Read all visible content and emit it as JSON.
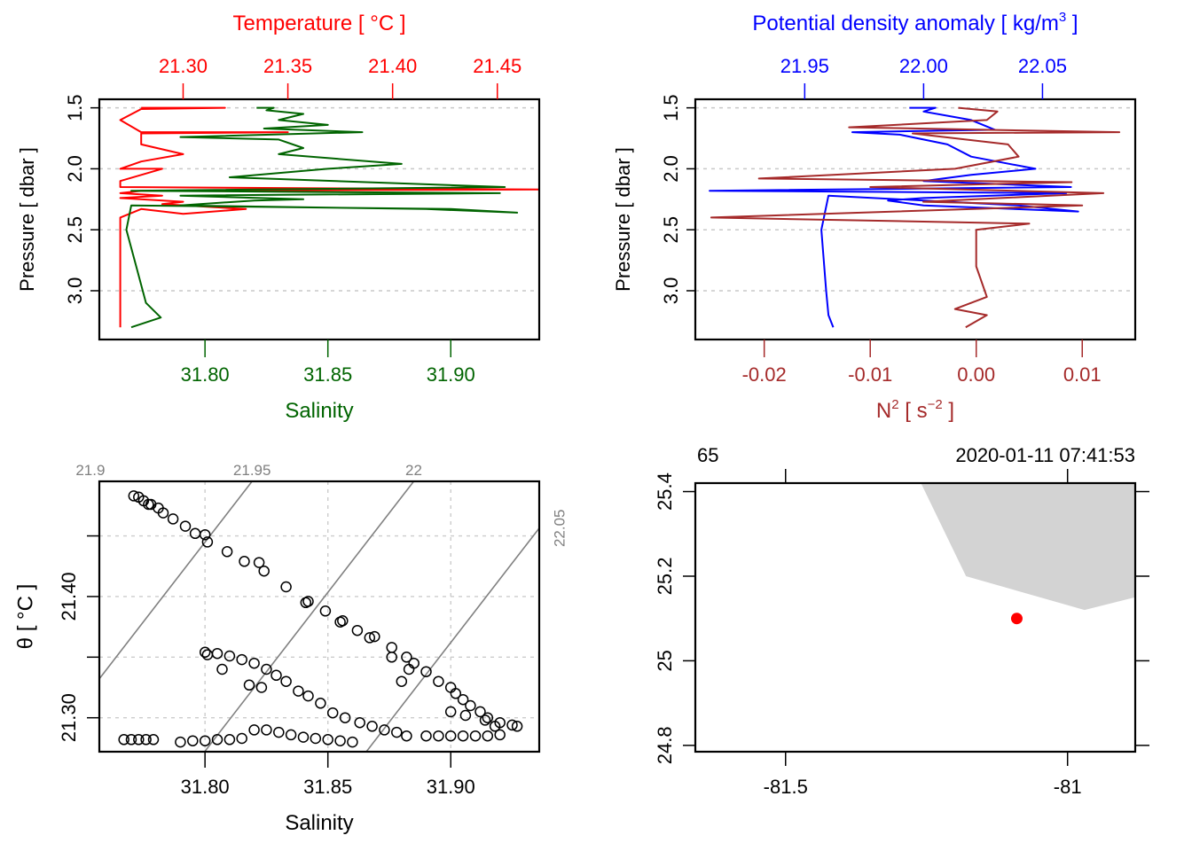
{
  "chart_data": [
    {
      "id": "profile-ts",
      "type": "line",
      "title": "",
      "ylabel": "Pressure [ dbar ]",
      "ylim": [
        3.4,
        1.43
      ],
      "yticks": [
        1.5,
        2.0,
        2.5,
        3.0
      ],
      "ytick_labels": [
        "1.5",
        "2.0",
        "2.5",
        "3.0"
      ],
      "grid": "horizontal-dotted",
      "top_axis": {
        "label": "Temperature [ °C ]",
        "color": "#ff0000",
        "range": [
          21.26,
          21.47
        ],
        "ticks": [
          21.3,
          21.35,
          21.4,
          21.45
        ],
        "tick_labels": [
          "21.30",
          "21.35",
          "21.40",
          "21.45"
        ]
      },
      "bottom_axis": {
        "label": "Salinity",
        "color": "#006400",
        "range": [
          31.757,
          31.936
        ],
        "ticks": [
          31.8,
          31.85,
          31.9
        ],
        "tick_labels": [
          "31.80",
          "31.85",
          "31.90"
        ]
      },
      "series": [
        {
          "name": "Temperature",
          "axis": "top",
          "color": "#ff0000",
          "points": [
            [
              21.28,
              1.5
            ],
            [
              21.32,
              1.5
            ],
            [
              21.28,
              1.51
            ],
            [
              21.27,
              1.6
            ],
            [
              21.28,
              1.7
            ],
            [
              21.35,
              1.7
            ],
            [
              21.28,
              1.71
            ],
            [
              21.28,
              1.8
            ],
            [
              21.3,
              1.88
            ],
            [
              21.28,
              1.94
            ],
            [
              21.27,
              2.0
            ],
            [
              21.29,
              2.0
            ],
            [
              21.27,
              2.1
            ],
            [
              21.27,
              2.15
            ],
            [
              21.47,
              2.17
            ],
            [
              21.28,
              2.18
            ],
            [
              21.27,
              2.2
            ],
            [
              21.29,
              2.22
            ],
            [
              21.27,
              2.24
            ],
            [
              21.3,
              2.27
            ],
            [
              21.29,
              2.29
            ],
            [
              21.33,
              2.33
            ],
            [
              21.3,
              2.37
            ],
            [
              21.28,
              2.33
            ],
            [
              21.27,
              2.4
            ],
            [
              21.27,
              2.7
            ],
            [
              21.27,
              3.0
            ],
            [
              21.27,
              3.3
            ]
          ]
        },
        {
          "name": "Salinity",
          "axis": "bottom",
          "color": "#006400",
          "points": [
            [
              31.821,
              1.5
            ],
            [
              31.828,
              1.5
            ],
            [
              31.825,
              1.52
            ],
            [
              31.84,
              1.55
            ],
            [
              31.83,
              1.6
            ],
            [
              31.85,
              1.64
            ],
            [
              31.824,
              1.67
            ],
            [
              31.864,
              1.7
            ],
            [
              31.79,
              1.74
            ],
            [
              31.83,
              1.76
            ],
            [
              31.84,
              1.83
            ],
            [
              31.83,
              1.88
            ],
            [
              31.88,
              1.96
            ],
            [
              31.85,
              2.0
            ],
            [
              31.81,
              2.07
            ],
            [
              31.922,
              2.15
            ],
            [
              31.77,
              2.18
            ],
            [
              31.92,
              2.2
            ],
            [
              31.79,
              2.22
            ],
            [
              31.84,
              2.25
            ],
            [
              31.82,
              2.26
            ],
            [
              31.79,
              2.3
            ],
            [
              31.89,
              2.33
            ],
            [
              31.927,
              2.36
            ],
            [
              31.9,
              2.33
            ],
            [
              31.77,
              2.3
            ],
            [
              31.768,
              2.5
            ],
            [
              31.772,
              2.8
            ],
            [
              31.776,
              3.1
            ],
            [
              31.782,
              3.22
            ],
            [
              31.77,
              3.3
            ]
          ]
        }
      ]
    },
    {
      "id": "profile-density-n2",
      "type": "line",
      "title": "",
      "ylabel": "Pressure [ dbar ]",
      "ylim": [
        3.4,
        1.43
      ],
      "yticks": [
        1.5,
        2.0,
        2.5,
        3.0
      ],
      "ytick_labels": [
        "1.5",
        "2.0",
        "2.5",
        "3.0"
      ],
      "grid": "horizontal-dotted",
      "top_axis": {
        "label": "Potential density anomaly [ kg/m",
        "label_sup": "3",
        "label_end": " ]",
        "color": "#0000ff",
        "range": [
          21.904,
          22.089
        ],
        "ticks": [
          21.95,
          22.0,
          22.05
        ],
        "tick_labels": [
          "21.95",
          "22.00",
          "22.05"
        ]
      },
      "bottom_axis": {
        "label": "N",
        "label_sup": "2",
        "label_mid": " [ s",
        "label_sup2": "−2",
        "label_end": " ]",
        "color": "#a52a2a",
        "range": [
          -0.0265,
          0.015
        ],
        "ticks": [
          -0.02,
          -0.01,
          0.0,
          0.01
        ],
        "tick_labels": [
          "-0.02",
          "-0.01",
          "0.00",
          "0.01"
        ]
      },
      "series": [
        {
          "name": "Potential density anomaly",
          "axis": "top",
          "color": "#0000ff",
          "points": [
            [
              21.994,
              1.5
            ],
            [
              22.005,
              1.5
            ],
            [
              22.0,
              1.53
            ],
            [
              22.02,
              1.6
            ],
            [
              22.03,
              1.68
            ],
            [
              21.97,
              1.7
            ],
            [
              21.99,
              1.72
            ],
            [
              22.01,
              1.8
            ],
            [
              22.02,
              1.9
            ],
            [
              22.047,
              2.0
            ],
            [
              22.02,
              2.05
            ],
            [
              22.0,
              2.1
            ],
            [
              22.062,
              2.15
            ],
            [
              21.91,
              2.18
            ],
            [
              22.06,
              2.2
            ],
            [
              22.0,
              2.24
            ],
            [
              21.985,
              2.26
            ],
            [
              22.0,
              2.3
            ],
            [
              22.065,
              2.35
            ],
            [
              22.04,
              2.3
            ],
            [
              21.96,
              2.22
            ],
            [
              21.957,
              2.5
            ],
            [
              21.959,
              3.0
            ],
            [
              21.96,
              3.2
            ],
            [
              21.962,
              3.3
            ]
          ]
        },
        {
          "name": "N2",
          "axis": "bottom",
          "color": "#a52a2a",
          "points": [
            [
              -0.0017,
              1.5
            ],
            [
              0.002,
              1.53
            ],
            [
              0.001,
              1.6
            ],
            [
              -0.012,
              1.66
            ],
            [
              0.0135,
              1.7
            ],
            [
              -0.006,
              1.71
            ],
            [
              0.003,
              1.8
            ],
            [
              0.004,
              1.9
            ],
            [
              -0.002,
              2.0
            ],
            [
              -0.0205,
              2.08
            ],
            [
              0.009,
              2.11
            ],
            [
              -0.01,
              2.15
            ],
            [
              0.012,
              2.2
            ],
            [
              -0.005,
              2.27
            ],
            [
              0.01,
              2.3
            ],
            [
              -0.025,
              2.4
            ],
            [
              0.005,
              2.45
            ],
            [
              0.0,
              2.5
            ],
            [
              0.0,
              2.8
            ],
            [
              0.001,
              3.05
            ],
            [
              -0.002,
              3.15
            ],
            [
              0.001,
              3.2
            ],
            [
              -0.001,
              3.3
            ]
          ]
        }
      ]
    },
    {
      "id": "ts-diagram",
      "type": "scatter",
      "title": "",
      "xlabel": "Salinity",
      "ylabel": "θ [ °C ]",
      "xlim": [
        31.757,
        31.936
      ],
      "ylim": [
        21.272,
        21.495
      ],
      "xticks": [
        31.8,
        31.85,
        31.9
      ],
      "xtick_labels": [
        "31.80",
        "31.85",
        "31.90"
      ],
      "yticks": [
        21.3,
        21.35,
        21.4,
        21.45
      ],
      "ytick_labels": [
        "21.30",
        "",
        "21.40",
        ""
      ],
      "grid": "dotted",
      "isopycnals": [
        {
          "label": "21.9",
          "value": 21.9
        },
        {
          "label": "21.95",
          "value": 21.95
        },
        {
          "label": "22",
          "value": 22.0
        },
        {
          "label": "22.05",
          "value": 22.05
        }
      ],
      "marker": "open-circle",
      "points": [
        [
          31.771,
          21.483
        ],
        [
          31.773,
          21.482
        ],
        [
          31.775,
          21.479
        ],
        [
          31.778,
          21.476
        ],
        [
          31.781,
          21.473
        ],
        [
          31.777,
          21.476
        ],
        [
          31.783,
          21.469
        ],
        [
          31.787,
          21.464
        ],
        [
          31.792,
          21.458
        ],
        [
          31.796,
          21.452
        ],
        [
          31.8,
          21.451
        ],
        [
          31.801,
          21.445
        ],
        [
          31.809,
          21.437
        ],
        [
          31.816,
          21.429
        ],
        [
          31.822,
          21.428
        ],
        [
          31.824,
          21.421
        ],
        [
          31.833,
          21.408
        ],
        [
          31.841,
          21.395
        ],
        [
          31.842,
          21.396
        ],
        [
          31.849,
          21.388
        ],
        [
          31.855,
          21.379
        ],
        [
          31.856,
          21.38
        ],
        [
          31.862,
          21.372
        ],
        [
          31.867,
          21.366
        ],
        [
          31.869,
          21.367
        ],
        [
          31.876,
          21.358
        ],
        [
          31.876,
          21.35
        ],
        [
          31.882,
          21.35
        ],
        [
          31.885,
          21.345
        ],
        [
          31.883,
          21.34
        ],
        [
          31.88,
          21.33
        ],
        [
          31.89,
          21.338
        ],
        [
          31.895,
          21.33
        ],
        [
          31.9,
          21.325
        ],
        [
          31.902,
          21.32
        ],
        [
          31.905,
          21.315
        ],
        [
          31.9,
          21.305
        ],
        [
          31.908,
          21.31
        ],
        [
          31.912,
          21.305
        ],
        [
          31.915,
          21.3
        ],
        [
          31.92,
          21.296
        ],
        [
          31.925,
          21.294
        ],
        [
          31.927,
          21.293
        ],
        [
          31.918,
          21.293
        ],
        [
          31.914,
          21.298
        ],
        [
          31.906,
          21.302
        ],
        [
          31.8,
          21.354
        ],
        [
          31.801,
          21.352
        ],
        [
          31.805,
          21.353
        ],
        [
          31.81,
          21.351
        ],
        [
          31.815,
          21.348
        ],
        [
          31.82,
          21.345
        ],
        [
          31.807,
          21.34
        ],
        [
          31.825,
          21.34
        ],
        [
          31.829,
          21.335
        ],
        [
          31.833,
          21.33
        ],
        [
          31.818,
          21.327
        ],
        [
          31.823,
          21.325
        ],
        [
          31.838,
          21.322
        ],
        [
          31.842,
          21.318
        ],
        [
          31.847,
          21.312
        ],
        [
          31.852,
          21.304
        ],
        [
          31.857,
          21.3
        ],
        [
          31.863,
          21.296
        ],
        [
          31.868,
          21.293
        ],
        [
          31.873,
          21.29
        ],
        [
          31.878,
          21.288
        ],
        [
          31.882,
          21.285
        ],
        [
          31.89,
          21.285
        ],
        [
          31.895,
          21.285
        ],
        [
          31.9,
          21.285
        ],
        [
          31.905,
          21.285
        ],
        [
          31.91,
          21.285
        ],
        [
          31.915,
          21.285
        ],
        [
          31.92,
          21.286
        ],
        [
          31.82,
          21.29
        ],
        [
          31.825,
          21.29
        ],
        [
          31.83,
          21.288
        ],
        [
          31.835,
          21.286
        ],
        [
          31.84,
          21.284
        ],
        [
          31.845,
          21.283
        ],
        [
          31.85,
          21.282
        ],
        [
          31.855,
          21.281
        ],
        [
          31.86,
          21.28
        ],
        [
          31.79,
          21.28
        ],
        [
          31.795,
          21.281
        ],
        [
          31.8,
          21.281
        ],
        [
          31.805,
          21.282
        ],
        [
          31.81,
          21.282
        ],
        [
          31.815,
          21.283
        ],
        [
          31.767,
          21.282
        ],
        [
          31.77,
          21.282
        ],
        [
          31.773,
          21.282
        ],
        [
          31.776,
          21.282
        ],
        [
          31.779,
          21.282
        ]
      ]
    },
    {
      "id": "station-map",
      "type": "map",
      "title_left": "65",
      "title_right": "2020-01-11 07:41:53",
      "xlim": [
        -81.66,
        -80.88
      ],
      "ylim": [
        24.785,
        25.42
      ],
      "xticks": [
        -81.5,
        -81.0
      ],
      "xtick_labels": [
        "-81.5",
        "-81"
      ],
      "yticks": [
        24.8,
        25.0,
        25.2,
        25.4
      ],
      "ytick_labels": [
        "24.8",
        "25",
        "25.2",
        "25.4"
      ],
      "land_polygon": [
        [
          -81.26,
          25.42
        ],
        [
          -81.18,
          25.2
        ],
        [
          -80.97,
          25.12
        ],
        [
          -80.88,
          25.15
        ],
        [
          -80.88,
          25.42
        ]
      ],
      "land_color": "#d3d3d3",
      "station": {
        "lon": -81.09,
        "lat": 25.1,
        "color": "#ff0000"
      }
    }
  ]
}
